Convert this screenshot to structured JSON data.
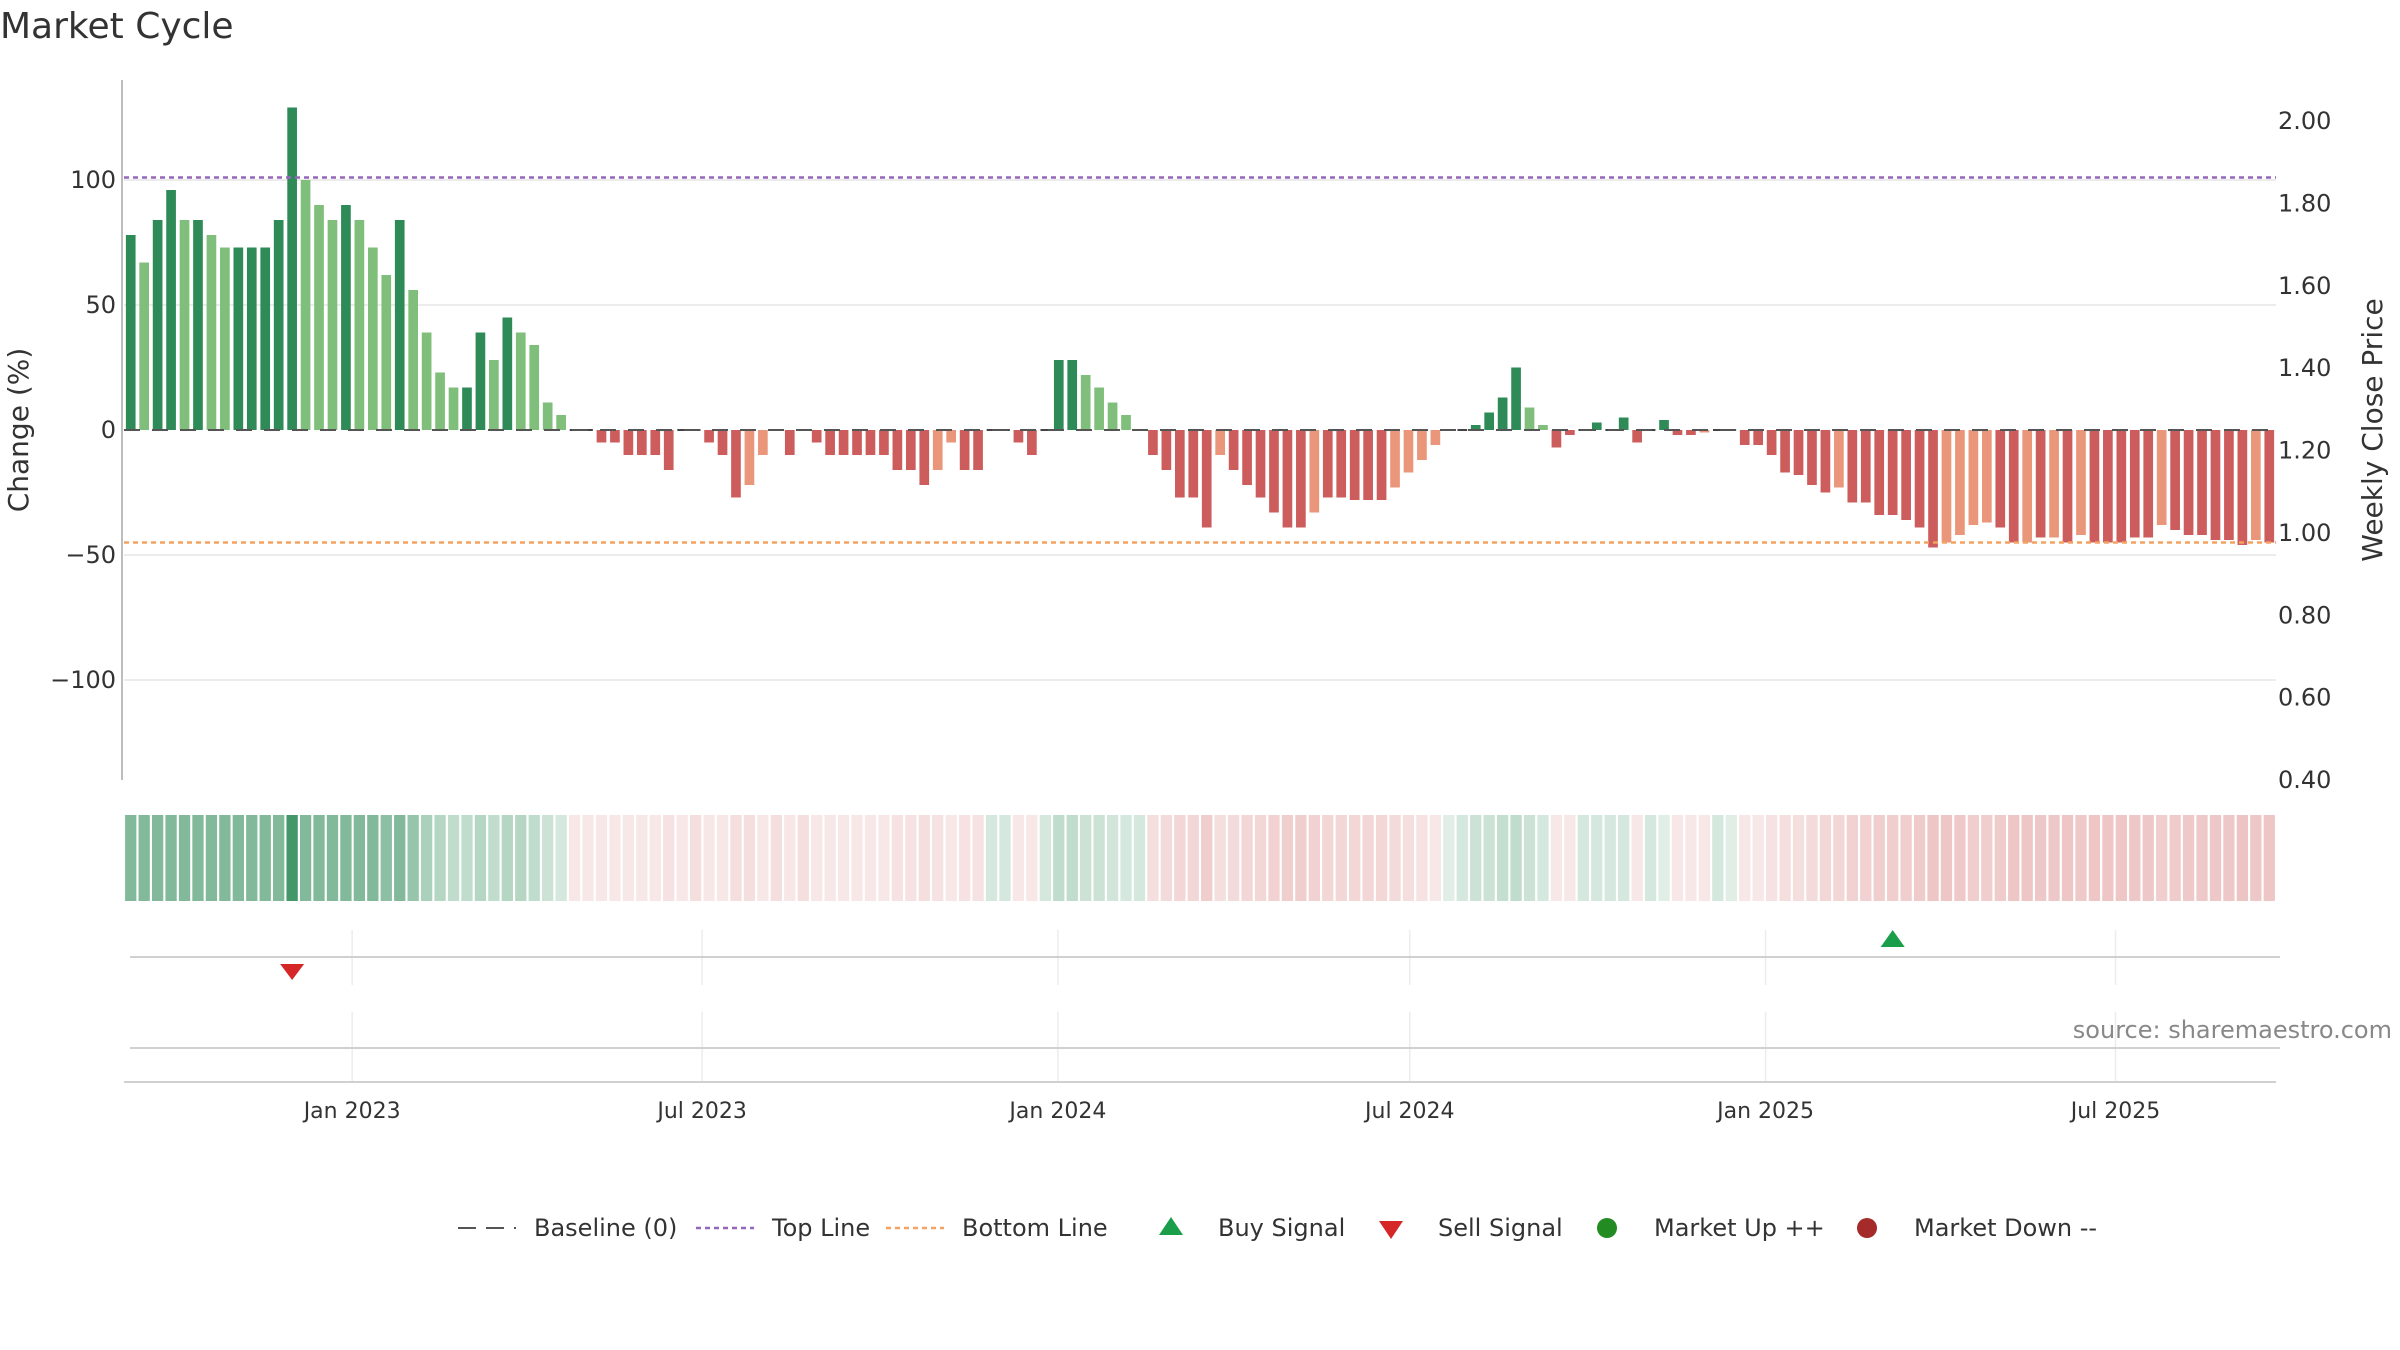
{
  "title": "Market Cycle",
  "source_text": "source: sharemaestro.com",
  "colors": {
    "up_strong": "#2e8b57",
    "up_light": "#7fbf7b",
    "down_strong": "#cd5c5c",
    "down_light": "#e9967a",
    "top_line": "#9467bd",
    "bottom_line": "#f4a261",
    "buy": "#1a9e4a",
    "sell": "#d62728",
    "market_up": "#228b22",
    "market_down": "#a52a2a"
  },
  "chart_data": {
    "type": "bar",
    "ylabel_left": "Change (%)",
    "ylabel_right": "Weekly Close Price",
    "ylim_left": [
      -140,
      140
    ],
    "ylim_right": [
      0.4,
      2.1
    ],
    "left_ticks": [
      {
        "value": 100,
        "label": "100"
      },
      {
        "value": 50,
        "label": "50"
      },
      {
        "value": 0,
        "label": "0"
      },
      {
        "value": -50,
        "label": "−50"
      },
      {
        "value": -100,
        "label": "−100"
      }
    ],
    "right_ticks": [
      {
        "value": 2.0,
        "label": "2.00"
      },
      {
        "value": 1.8,
        "label": "1.80"
      },
      {
        "value": 1.6,
        "label": "1.60"
      },
      {
        "value": 1.4,
        "label": "1.40"
      },
      {
        "value": 1.2,
        "label": "1.20"
      },
      {
        "value": 1.0,
        "label": "1.00"
      },
      {
        "value": 0.8,
        "label": "0.80"
      },
      {
        "value": 0.6,
        "label": "0.60"
      },
      {
        "value": 0.4,
        "label": "0.40"
      }
    ],
    "top_line": 101,
    "bottom_line": -45,
    "baseline": 0,
    "x_start": "2022-09-05",
    "x_end": "2025-09-22",
    "date_ticks": [
      {
        "date": "2023-01-01",
        "label": "Jan 2023"
      },
      {
        "date": "2023-07-01",
        "label": "Jul 2023"
      },
      {
        "date": "2024-01-01",
        "label": "Jan 2024"
      },
      {
        "date": "2024-07-01",
        "label": "Jul 2024"
      },
      {
        "date": "2025-01-01",
        "label": "Jan 2025"
      },
      {
        "date": "2025-07-01",
        "label": "Jul 2025"
      }
    ],
    "values": [
      78,
      67,
      84,
      96,
      84,
      84,
      78,
      73,
      73,
      73,
      73,
      84,
      129,
      100,
      90,
      84,
      90,
      84,
      73,
      62,
      84,
      56,
      39,
      23,
      17,
      17,
      39,
      28,
      45,
      39,
      34,
      11,
      6,
      0,
      0,
      -5,
      -5,
      -10,
      -10,
      -10,
      -16,
      0,
      0,
      -5,
      -10,
      -27,
      -22,
      -10,
      0,
      -10,
      0,
      -5,
      -10,
      -10,
      -10,
      -10,
      -10,
      -16,
      -16,
      -22,
      -16,
      -5,
      -16,
      -16,
      0,
      0,
      -5,
      -10,
      0,
      28,
      28,
      22,
      17,
      11,
      6,
      0,
      -10,
      -16,
      -27,
      -27,
      -39,
      -10,
      -16,
      -22,
      -27,
      -33,
      -39,
      -39,
      -33,
      -27,
      -27,
      -28,
      -28,
      -28,
      -23,
      -17,
      -12,
      -6,
      0,
      0,
      2,
      7,
      13,
      25,
      9,
      2,
      -7,
      -2,
      0,
      3,
      0,
      5,
      -5,
      0,
      4,
      -2,
      -2,
      -1,
      0,
      0,
      -6,
      -6,
      -10,
      -17,
      -18,
      -22,
      -25,
      -23,
      -29,
      -29,
      -34,
      -34,
      -36,
      -39,
      -47,
      -45,
      -42,
      -38,
      -37,
      -39,
      -45,
      -45,
      -43,
      -43,
      -45,
      -42,
      -45,
      -45,
      -45,
      -43,
      -43,
      -38,
      -40,
      -42,
      -42,
      -44,
      -44,
      -46,
      -44,
      -45
    ],
    "bar_intensity": [
      1,
      0,
      1,
      1,
      0,
      1,
      0,
      0,
      1,
      1,
      1,
      1,
      1,
      0,
      0,
      0,
      1,
      0,
      0,
      0,
      1,
      0,
      0,
      0,
      0,
      1,
      1,
      0,
      1,
      0,
      0,
      0,
      0,
      0,
      0,
      1,
      1,
      1,
      1,
      1,
      1,
      0,
      0,
      1,
      1,
      1,
      0,
      0,
      0,
      1,
      0,
      1,
      1,
      1,
      1,
      1,
      1,
      1,
      1,
      1,
      0,
      0,
      1,
      1,
      0,
      0,
      1,
      1,
      0,
      1,
      1,
      0,
      0,
      0,
      0,
      0,
      1,
      1,
      1,
      1,
      1,
      0,
      1,
      1,
      1,
      1,
      1,
      1,
      0,
      1,
      1,
      1,
      1,
      1,
      0,
      0,
      0,
      0,
      0,
      0,
      1,
      1,
      1,
      1,
      0,
      0,
      1,
      1,
      0,
      1,
      0,
      1,
      1,
      0,
      1,
      1,
      1,
      0,
      0,
      0,
      1,
      1,
      1,
      1,
      1,
      1,
      1,
      0,
      1,
      1,
      1,
      1,
      1,
      1,
      1,
      0,
      0,
      0,
      0,
      1,
      1,
      0,
      1,
      0,
      1,
      0,
      1,
      1,
      1,
      1,
      1,
      0,
      1,
      1,
      1,
      1,
      1,
      1,
      0,
      1
    ],
    "strength": [
      0.6,
      0.6,
      0.6,
      0.6,
      0.6,
      0.6,
      0.6,
      0.6,
      0.6,
      0.6,
      0.6,
      0.6,
      0.9,
      0.6,
      0.6,
      0.6,
      0.6,
      0.6,
      0.6,
      0.55,
      0.6,
      0.5,
      0.4,
      0.35,
      0.3,
      0.3,
      0.35,
      0.3,
      0.35,
      0.35,
      0.3,
      0.25,
      0.2,
      0.15,
      0.15,
      0.15,
      0.15,
      0.15,
      0.15,
      0.15,
      0.18,
      0.15,
      0.2,
      0.15,
      0.15,
      0.2,
      0.2,
      0.15,
      0.2,
      0.15,
      0.2,
      0.15,
      0.15,
      0.15,
      0.15,
      0.15,
      0.15,
      0.18,
      0.18,
      0.2,
      0.18,
      0.15,
      0.18,
      0.18,
      0.2,
      0.2,
      0.15,
      0.15,
      0.2,
      0.3,
      0.3,
      0.25,
      0.25,
      0.22,
      0.2,
      0.2,
      0.2,
      0.22,
      0.25,
      0.25,
      0.3,
      0.2,
      0.22,
      0.25,
      0.25,
      0.28,
      0.3,
      0.3,
      0.28,
      0.25,
      0.25,
      0.25,
      0.25,
      0.25,
      0.22,
      0.2,
      0.18,
      0.15,
      0.15,
      0.2,
      0.25,
      0.25,
      0.28,
      0.3,
      0.25,
      0.2,
      0.15,
      0.15,
      0.2,
      0.2,
      0.2,
      0.2,
      0.15,
      0.2,
      0.15,
      0.15,
      0.15,
      0.15,
      0.2,
      0.15,
      0.15,
      0.15,
      0.18,
      0.2,
      0.2,
      0.22,
      0.25,
      0.25,
      0.28,
      0.28,
      0.3,
      0.3,
      0.3,
      0.32,
      0.35,
      0.35,
      0.33,
      0.3,
      0.3,
      0.32,
      0.35,
      0.35,
      0.34,
      0.34,
      0.35,
      0.33,
      0.35,
      0.35,
      0.35,
      0.34,
      0.34,
      0.3,
      0.32,
      0.33,
      0.33,
      0.34,
      0.34,
      0.36,
      0.34,
      0.35
    ],
    "signals": [
      {
        "type": "sell",
        "index": 12
      },
      {
        "type": "buy",
        "index": 131
      }
    ]
  },
  "legend": [
    {
      "type": "baseline",
      "label": "Baseline (0)"
    },
    {
      "type": "top_line",
      "label": "Top Line"
    },
    {
      "type": "bottom_line",
      "label": "Bottom Line"
    },
    {
      "type": "buy",
      "label": "Buy Signal"
    },
    {
      "type": "sell",
      "label": "Sell Signal"
    },
    {
      "type": "market_up",
      "label": "Market Up ++"
    },
    {
      "type": "market_down",
      "label": "Market Down --"
    }
  ]
}
